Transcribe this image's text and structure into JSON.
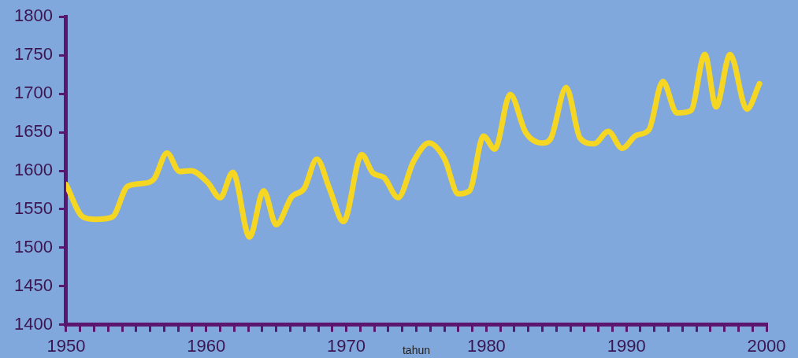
{
  "chart_data": {
    "type": "line",
    "xlabel": "tahun",
    "x": [
      1950,
      1951.2,
      1952.1,
      1953.3,
      1954.4,
      1955.7,
      1956.3,
      1957.2,
      1958.1,
      1958.9,
      1960.1,
      1961,
      1961.9,
      1963.1,
      1964.1,
      1965,
      1966.1,
      1967,
      1967.9,
      1968.8,
      1969.8,
      1971.1,
      1971.9,
      1972.7,
      1973.7,
      1974.8,
      1975.9,
      1977,
      1978,
      1978.8,
      1979.8,
      1980.6,
      1981.7,
      1982.8,
      1984,
      1984.6,
      1985.7,
      1986.7,
      1987.7,
      1988.7,
      1989.7,
      1990.7,
      1991.6,
      1992.6,
      1993.6,
      1994.6,
      1995.6,
      1996.4,
      1997.4,
      1998.6,
      1999.5
    ],
    "series": [
      {
        "color": "#f5d623",
        "values": [
          1582,
          1540,
          1537,
          1540,
          1580,
          1584,
          1590,
          1623,
          1599,
          1600,
          1585,
          1565,
          1598,
          1514,
          1574,
          1530,
          1566,
          1577,
          1615,
          1577,
          1534,
          1621,
          1597,
          1591,
          1565,
          1612,
          1636,
          1616,
          1570,
          1574,
          1645,
          1628,
          1699,
          1650,
          1636,
          1642,
          1708,
          1642,
          1635,
          1651,
          1629,
          1646,
          1653,
          1716,
          1675,
          1678,
          1751,
          1683,
          1751,
          1680,
          1713
        ]
      }
    ],
    "xlim": [
      1950,
      2000
    ],
    "xticks": [
      1950,
      {
        "value": 1951,
        "label": null
      },
      {
        "value": 1952,
        "label": null
      },
      {
        "value": 1953,
        "label": null
      },
      {
        "value": 1954,
        "label": null
      },
      {
        "value": 1955,
        "label": null
      },
      {
        "value": 1956,
        "label": null
      },
      {
        "value": 1957,
        "label": null
      },
      {
        "value": 1958,
        "label": null
      },
      {
        "value": 1959,
        "label": null
      },
      1960,
      {
        "value": 1961,
        "label": null
      },
      {
        "value": 1962,
        "label": null
      },
      {
        "value": 1963,
        "label": null
      },
      {
        "value": 1964,
        "label": null
      },
      {
        "value": 1965,
        "label": null
      },
      {
        "value": 1966,
        "label": null
      },
      {
        "value": 1967,
        "label": null
      },
      {
        "value": 1968,
        "label": null
      },
      {
        "value": 1969,
        "label": null
      },
      1970,
      {
        "value": 1971,
        "label": null
      },
      {
        "value": 1972,
        "label": null
      },
      {
        "value": 1973,
        "label": null
      },
      {
        "value": 1974,
        "label": null
      },
      {
        "value": 1975,
        "label": null
      },
      {
        "value": 1976,
        "label": null
      },
      {
        "value": 1977,
        "label": null
      },
      {
        "value": 1978,
        "label": null
      },
      {
        "value": 1979,
        "label": null
      },
      1980,
      {
        "value": 1981,
        "label": null
      },
      {
        "value": 1982,
        "label": null
      },
      {
        "value": 1983,
        "label": null
      },
      {
        "value": 1984,
        "label": null
      },
      {
        "value": 1985,
        "label": null
      },
      {
        "value": 1986,
        "label": null
      },
      {
        "value": 1987,
        "label": null
      },
      {
        "value": 1988,
        "label": null
      },
      {
        "value": 1989,
        "label": null
      },
      1990,
      {
        "value": 1991,
        "label": null
      },
      {
        "value": 1992,
        "label": null
      },
      {
        "value": 1993,
        "label": null
      },
      {
        "value": 1994,
        "label": null
      },
      {
        "value": 1995,
        "label": null
      },
      {
        "value": 1996,
        "label": null
      },
      {
        "value": 1997,
        "label": null
      },
      {
        "value": 1998,
        "label": null
      },
      {
        "value": 1999,
        "label": null
      },
      2000
    ],
    "ylim": [
      1400,
      1800
    ],
    "yticks": [
      1400,
      1450,
      1500,
      1550,
      1600,
      1650,
      1700,
      1750,
      1800
    ],
    "grid": false,
    "legend": false,
    "marker": "none",
    "line_style": "solid"
  }
}
